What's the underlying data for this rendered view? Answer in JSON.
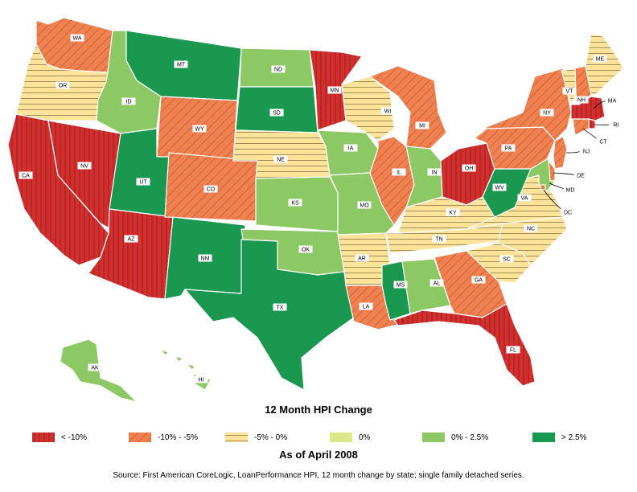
{
  "title": "12 Month HPI Change",
  "subtitle": "As of April 2008",
  "source": "Source: First American CoreLogic, LoanPerformance HPI, 12 month change by state; single family detached series.",
  "colors": {
    "lt_neg10": "#d32f2f",
    "neg10_neg5": "#f08050",
    "neg5_0": "#fde29a",
    "zero": "#dbe98a",
    "zero_2_5": "#8cc864",
    "gt_2_5": "#1a9850"
  },
  "legend": [
    {
      "key": "lt_neg10",
      "label": "< -10%"
    },
    {
      "key": "neg10_neg5",
      "label": "-10% - -5%"
    },
    {
      "key": "neg5_0",
      "label": "-5% - 0%"
    },
    {
      "key": "zero",
      "label": "0%"
    },
    {
      "key": "zero_2_5",
      "label": "0% - 2.5%"
    },
    {
      "key": "gt_2_5",
      "label": "> 2.5%"
    }
  ],
  "states": [
    {
      "abbr": "WA",
      "category": "neg10_neg5"
    },
    {
      "abbr": "OR",
      "category": "neg5_0"
    },
    {
      "abbr": "CA",
      "category": "lt_neg10"
    },
    {
      "abbr": "NV",
      "category": "lt_neg10"
    },
    {
      "abbr": "ID",
      "category": "zero_2_5"
    },
    {
      "abbr": "MT",
      "category": "gt_2_5"
    },
    {
      "abbr": "WY",
      "category": "neg10_neg5"
    },
    {
      "abbr": "UT",
      "category": "gt_2_5"
    },
    {
      "abbr": "AZ",
      "category": "lt_neg10"
    },
    {
      "abbr": "CO",
      "category": "neg10_neg5"
    },
    {
      "abbr": "NM",
      "category": "gt_2_5"
    },
    {
      "abbr": "ND",
      "category": "zero_2_5"
    },
    {
      "abbr": "SD",
      "category": "gt_2_5"
    },
    {
      "abbr": "NE",
      "category": "neg5_0"
    },
    {
      "abbr": "KS",
      "category": "zero_2_5"
    },
    {
      "abbr": "OK",
      "category": "zero_2_5"
    },
    {
      "abbr": "TX",
      "category": "gt_2_5"
    },
    {
      "abbr": "MN",
      "category": "lt_neg10"
    },
    {
      "abbr": "IA",
      "category": "zero_2_5"
    },
    {
      "abbr": "MO",
      "category": "zero_2_5"
    },
    {
      "abbr": "AR",
      "category": "neg5_0"
    },
    {
      "abbr": "LA",
      "category": "neg10_neg5"
    },
    {
      "abbr": "WI",
      "category": "neg5_0"
    },
    {
      "abbr": "IL",
      "category": "neg10_neg5"
    },
    {
      "abbr": "MI",
      "category": "neg10_neg5"
    },
    {
      "abbr": "IN",
      "category": "zero_2_5"
    },
    {
      "abbr": "OH",
      "category": "lt_neg10"
    },
    {
      "abbr": "KY",
      "category": "neg5_0"
    },
    {
      "abbr": "TN",
      "category": "neg5_0"
    },
    {
      "abbr": "MS",
      "category": "gt_2_5"
    },
    {
      "abbr": "AL",
      "category": "zero_2_5"
    },
    {
      "abbr": "GA",
      "category": "neg10_neg5"
    },
    {
      "abbr": "FL",
      "category": "lt_neg10"
    },
    {
      "abbr": "SC",
      "category": "neg5_0"
    },
    {
      "abbr": "NC",
      "category": "neg5_0"
    },
    {
      "abbr": "VA",
      "category": "neg5_0"
    },
    {
      "abbr": "WV",
      "category": "gt_2_5"
    },
    {
      "abbr": "PA",
      "category": "neg10_neg5"
    },
    {
      "abbr": "NY",
      "category": "neg10_neg5"
    },
    {
      "abbr": "VT",
      "category": "neg5_0"
    },
    {
      "abbr": "NH",
      "category": "neg10_neg5"
    },
    {
      "abbr": "ME",
      "category": "neg5_0"
    },
    {
      "abbr": "MA",
      "category": "lt_neg10"
    },
    {
      "abbr": "RI",
      "category": "lt_neg10"
    },
    {
      "abbr": "CT",
      "category": "neg10_neg5"
    },
    {
      "abbr": "NJ",
      "category": "neg10_neg5"
    },
    {
      "abbr": "DE",
      "category": "neg10_neg5"
    },
    {
      "abbr": "MD",
      "category": "zero_2_5"
    },
    {
      "abbr": "DC",
      "category": "neg10_neg5"
    },
    {
      "abbr": "AK",
      "category": "zero_2_5"
    },
    {
      "abbr": "HI",
      "category": "zero_2_5"
    }
  ]
}
